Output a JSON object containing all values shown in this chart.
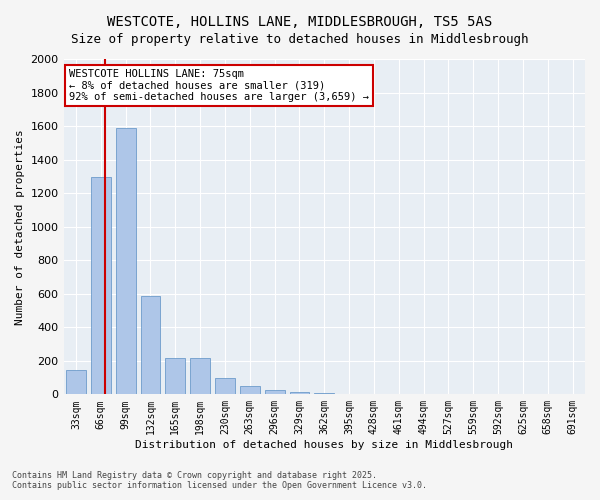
{
  "title_line1": "WESTCOTE, HOLLINS LANE, MIDDLESBROUGH, TS5 5AS",
  "title_line2": "Size of property relative to detached houses in Middlesbrough",
  "xlabel": "Distribution of detached houses by size in Middlesbrough",
  "ylabel": "Number of detached properties",
  "categories": [
    "33sqm",
    "66sqm",
    "99sqm",
    "132sqm",
    "165sqm",
    "198sqm",
    "230sqm",
    "263sqm",
    "296sqm",
    "329sqm",
    "362sqm",
    "395sqm",
    "428sqm",
    "461sqm",
    "494sqm",
    "527sqm",
    "559sqm",
    "592sqm",
    "625sqm",
    "658sqm",
    "691sqm"
  ],
  "values": [
    145,
    1295,
    1590,
    585,
    215,
    215,
    100,
    52,
    25,
    15,
    8,
    2,
    0,
    0,
    0,
    0,
    0,
    0,
    0,
    0,
    0
  ],
  "bar_color": "#aec6e8",
  "bar_edge_color": "#5a8fc4",
  "vline_x_index": 1,
  "vline_color": "#cc0000",
  "annotation_title": "WESTCOTE HOLLINS LANE: 75sqm",
  "annotation_line2": "← 8% of detached houses are smaller (319)",
  "annotation_line3": "92% of semi-detached houses are larger (3,659) →",
  "annotation_box_color": "#cc0000",
  "ylim": [
    0,
    2000
  ],
  "yticks": [
    0,
    200,
    400,
    600,
    800,
    1000,
    1200,
    1400,
    1600,
    1800,
    2000
  ],
  "bg_color": "#e8eef4",
  "grid_color": "#ffffff",
  "footer_line1": "Contains HM Land Registry data © Crown copyright and database right 2025.",
  "footer_line2": "Contains public sector information licensed under the Open Government Licence v3.0."
}
